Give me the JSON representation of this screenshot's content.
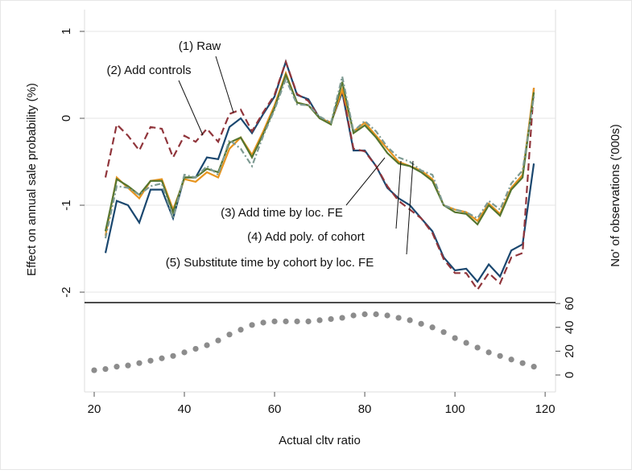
{
  "chart_data": [
    {
      "type": "line",
      "ylabel": "Effect on annual sale probability (%)",
      "x": [
        22.5,
        25,
        27.5,
        30,
        32.5,
        35,
        37.5,
        40,
        42.5,
        45,
        47.5,
        50,
        52.5,
        55,
        57.5,
        60,
        62.5,
        65,
        67.5,
        70,
        72.5,
        75,
        77.5,
        80,
        82.5,
        85,
        87.5,
        90,
        92.5,
        95,
        97.5,
        100,
        102.5,
        105,
        107.5,
        110,
        112.5,
        115,
        117.5
      ],
      "xlim": [
        17.86,
        122.3
      ],
      "ylim": [
        -2.12,
        1.25
      ],
      "yticks": [
        1,
        0,
        -1,
        -2
      ],
      "grid": true,
      "series": [
        {
          "name": "(1) Raw",
          "color": "#1a476f",
          "dash": "solid",
          "values": [
            -1.55,
            -0.95,
            -1.0,
            -1.2,
            -0.82,
            -0.82,
            -1.15,
            -0.68,
            -0.68,
            -0.45,
            -0.47,
            -0.1,
            0.0,
            -0.17,
            0.05,
            0.25,
            0.65,
            0.27,
            0.22,
            0.0,
            -0.05,
            0.3,
            -0.37,
            -0.37,
            -0.55,
            -0.8,
            -0.92,
            -1.0,
            -1.15,
            -1.3,
            -1.6,
            -1.75,
            -1.73,
            -1.88,
            -1.68,
            -1.82,
            -1.52,
            -1.45,
            -0.52
          ]
        },
        {
          "name": "(2) Add controls",
          "color": "#90353b",
          "dash": "dashed",
          "values": [
            -0.68,
            -0.07,
            -0.2,
            -0.37,
            -0.1,
            -0.12,
            -0.45,
            -0.2,
            -0.27,
            -0.12,
            -0.27,
            0.05,
            0.1,
            -0.15,
            0.07,
            0.27,
            0.65,
            0.28,
            0.2,
            0.0,
            -0.05,
            0.32,
            -0.35,
            -0.38,
            -0.55,
            -0.78,
            -0.95,
            -1.05,
            -1.15,
            -1.32,
            -1.62,
            -1.78,
            -1.78,
            -1.97,
            -1.78,
            -1.9,
            -1.6,
            -1.55,
            0.35
          ]
        },
        {
          "name": "(3) Add time by loc. FE",
          "color": "#e8951f",
          "dash": "solid",
          "values": [
            -1.35,
            -0.68,
            -0.8,
            -0.92,
            -0.72,
            -0.7,
            -1.05,
            -0.7,
            -0.73,
            -0.62,
            -0.68,
            -0.35,
            -0.22,
            -0.42,
            -0.15,
            0.15,
            0.52,
            0.18,
            0.15,
            0.0,
            -0.05,
            0.33,
            -0.15,
            -0.05,
            -0.2,
            -0.35,
            -0.5,
            -0.55,
            -0.6,
            -0.7,
            -1.0,
            -1.05,
            -1.08,
            -1.18,
            -0.98,
            -1.1,
            -0.8,
            -0.65,
            0.35
          ]
        },
        {
          "name": "(4) Add poly. of cohort",
          "color": "#55752f",
          "dash": "solid",
          "values": [
            -1.3,
            -0.7,
            -0.78,
            -0.88,
            -0.72,
            -0.72,
            -1.08,
            -0.68,
            -0.68,
            -0.58,
            -0.62,
            -0.28,
            -0.22,
            -0.45,
            -0.18,
            0.12,
            0.5,
            0.18,
            0.15,
            0.0,
            -0.07,
            0.42,
            -0.17,
            -0.08,
            -0.22,
            -0.4,
            -0.52,
            -0.55,
            -0.62,
            -0.72,
            -1.0,
            -1.08,
            -1.1,
            -1.22,
            -1.0,
            -1.12,
            -0.82,
            -0.68,
            0.3
          ]
        },
        {
          "name": "(5) Substitute time by cohort by loc. FE",
          "color": "#7d9a92",
          "dash": "dashdot",
          "values": [
            -1.38,
            -0.78,
            -0.8,
            -0.88,
            -0.78,
            -0.75,
            -1.15,
            -0.65,
            -0.68,
            -0.55,
            -0.65,
            -0.25,
            -0.35,
            -0.55,
            -0.2,
            0.1,
            0.45,
            0.16,
            0.15,
            0.02,
            -0.05,
            0.48,
            -0.15,
            -0.03,
            -0.15,
            -0.33,
            -0.45,
            -0.5,
            -0.6,
            -0.65,
            -1.0,
            -1.05,
            -1.08,
            -1.15,
            -0.95,
            -1.05,
            -0.75,
            -0.6,
            0.25
          ]
        }
      ]
    },
    {
      "type": "scatter",
      "xlabel": "Actual cltv ratio",
      "ylabel": "No' of observations ('000s)",
      "x": [
        20,
        22.5,
        25,
        27.5,
        30,
        32.5,
        35,
        37.5,
        40,
        42.5,
        45,
        47.5,
        50,
        52.5,
        55,
        57.5,
        60,
        62.5,
        65,
        67.5,
        70,
        72.5,
        75,
        77.5,
        80,
        82.5,
        85,
        87.5,
        90,
        92.5,
        95,
        97.5,
        100,
        102.5,
        105,
        107.5,
        110,
        112.5,
        115,
        117.5
      ],
      "values": [
        4,
        5,
        7,
        8,
        10,
        12,
        14,
        16,
        19,
        22,
        25,
        29,
        34,
        38,
        42,
        44,
        45,
        45,
        45,
        45,
        46,
        47,
        48,
        50,
        51,
        51,
        50,
        48,
        46,
        43,
        40,
        36,
        31,
        27,
        23,
        19,
        16,
        13,
        10,
        7
      ],
      "color": "#8c8c8c",
      "xlim": [
        17.86,
        122.3
      ],
      "xticks": [
        20,
        40,
        60,
        80,
        100,
        120
      ],
      "ylim": [
        -14.2,
        60.8
      ],
      "yticks": [
        0,
        20,
        40,
        60
      ]
    }
  ]
}
